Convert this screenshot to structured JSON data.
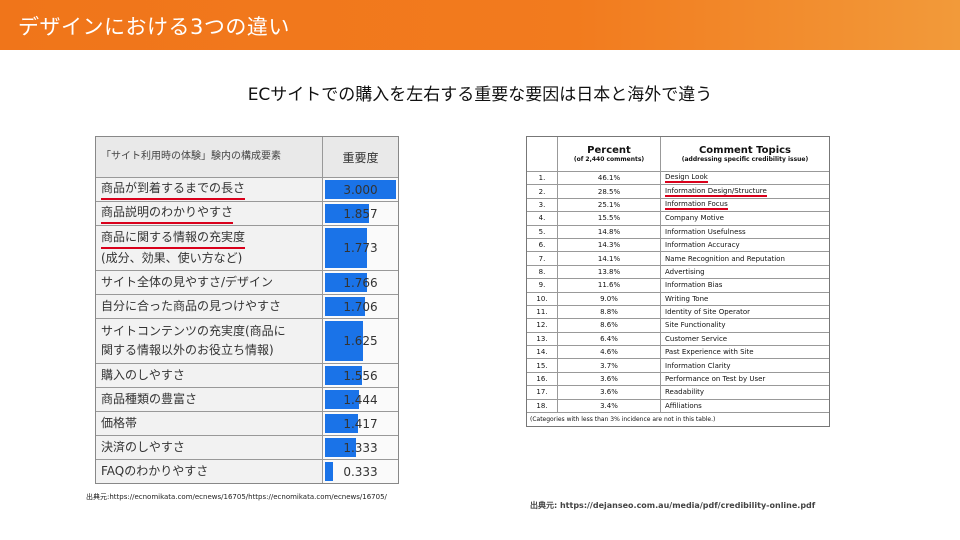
{
  "header": {
    "title": "デザインにおける3つの違い",
    "color": "#f0751a"
  },
  "subtitle": "ECサイトでの購入を左右する重要な要因は日本と海外で違う",
  "left_table": {
    "header_name": "「サイト利用時の体験」験内の構成要素",
    "header_value": "重要度",
    "rows": [
      {
        "lines": [
          "商品が到着するまでの長さ"
        ],
        "value": "3.000",
        "level": 1.0,
        "underline": true
      },
      {
        "lines": [
          "商品説明のわかりやすさ"
        ],
        "value": "1.857",
        "level": 0.62,
        "underline": true
      },
      {
        "lines": [
          "商品に関する情報の充実度",
          "(成分、効果、使い方など)"
        ],
        "value": "1.773",
        "level": 0.59,
        "underline": true
      },
      {
        "lines": [
          "サイト全体の見やすさ/デザイン"
        ],
        "value": "1.766",
        "level": 0.59,
        "underline": false
      },
      {
        "lines": [
          "自分に合った商品の見つけやすさ"
        ],
        "value": "1.706",
        "level": 0.57,
        "underline": false
      },
      {
        "lines": [
          "サイトコンテンツの充実度(商品に",
          "関する情報以外のお役立ち情報)"
        ],
        "value": "1.625",
        "level": 0.54,
        "underline": false
      },
      {
        "lines": [
          "購入のしやすさ"
        ],
        "value": "1.556",
        "level": 0.52,
        "underline": false
      },
      {
        "lines": [
          "商品種類の豊富さ"
        ],
        "value": "1.444",
        "level": 0.48,
        "underline": false
      },
      {
        "lines": [
          "価格帯"
        ],
        "value": "1.417",
        "level": 0.47,
        "underline": false
      },
      {
        "lines": [
          "決済のしやすさ"
        ],
        "value": "1.333",
        "level": 0.44,
        "underline": false
      },
      {
        "lines": [
          "FAQのわかりやすさ"
        ],
        "value": "0.333",
        "level": 0.11,
        "underline": false
      }
    ],
    "source": "出典元:https://ecnomikata.com/ecnews/16705/https://ecnomikata.com/ecnews/16705/",
    "bar_color": "#1a73e8",
    "underline_color": "#d9001b"
  },
  "right_table": {
    "header_percent": "Percent",
    "header_percent_sub": "(of 2,440 comments)",
    "header_topic": "Comment Topics",
    "header_topic_sub": "(addressing specific credibility issue)",
    "rows": [
      {
        "num": "1.",
        "pct": "46.1%",
        "topic": "Design Look",
        "underline": true
      },
      {
        "num": "2.",
        "pct": "28.5%",
        "topic": "Information Design/Structure",
        "underline": true
      },
      {
        "num": "3.",
        "pct": "25.1%",
        "topic": "Information Focus",
        "underline": true
      },
      {
        "num": "4.",
        "pct": "15.5%",
        "topic": "Company Motive",
        "underline": false
      },
      {
        "num": "5.",
        "pct": "14.8%",
        "topic": "Information Usefulness",
        "underline": false
      },
      {
        "num": "6.",
        "pct": "14.3%",
        "topic": "Information Accuracy",
        "underline": false
      },
      {
        "num": "7.",
        "pct": "14.1%",
        "topic": "Name Recognition and Reputation",
        "underline": false
      },
      {
        "num": "8.",
        "pct": "13.8%",
        "topic": "Advertising",
        "underline": false
      },
      {
        "num": "9.",
        "pct": "11.6%",
        "topic": "Information Bias",
        "underline": false
      },
      {
        "num": "10.",
        "pct": "9.0%",
        "topic": "Writing Tone",
        "underline": false
      },
      {
        "num": "11.",
        "pct": "8.8%",
        "topic": "Identity of Site Operator",
        "underline": false
      },
      {
        "num": "12.",
        "pct": "8.6%",
        "topic": "Site Functionality",
        "underline": false
      },
      {
        "num": "13.",
        "pct": "6.4%",
        "topic": "Customer Service",
        "underline": false
      },
      {
        "num": "14.",
        "pct": "4.6%",
        "topic": "Past Experience with Site",
        "underline": false
      },
      {
        "num": "15.",
        "pct": "3.7%",
        "topic": "Information Clarity",
        "underline": false
      },
      {
        "num": "16.",
        "pct": "3.6%",
        "topic": "Performance on Test by User",
        "underline": false
      },
      {
        "num": "17.",
        "pct": "3.6%",
        "topic": "Readability",
        "underline": false
      },
      {
        "num": "18.",
        "pct": "3.4%",
        "topic": "Affiliations",
        "underline": false
      }
    ],
    "note": "(Categories with less than 3% incidence are not in this table.)",
    "source": "出典元: https://dejanseo.com.au/media/pdf/credibility-online.pdf"
  }
}
